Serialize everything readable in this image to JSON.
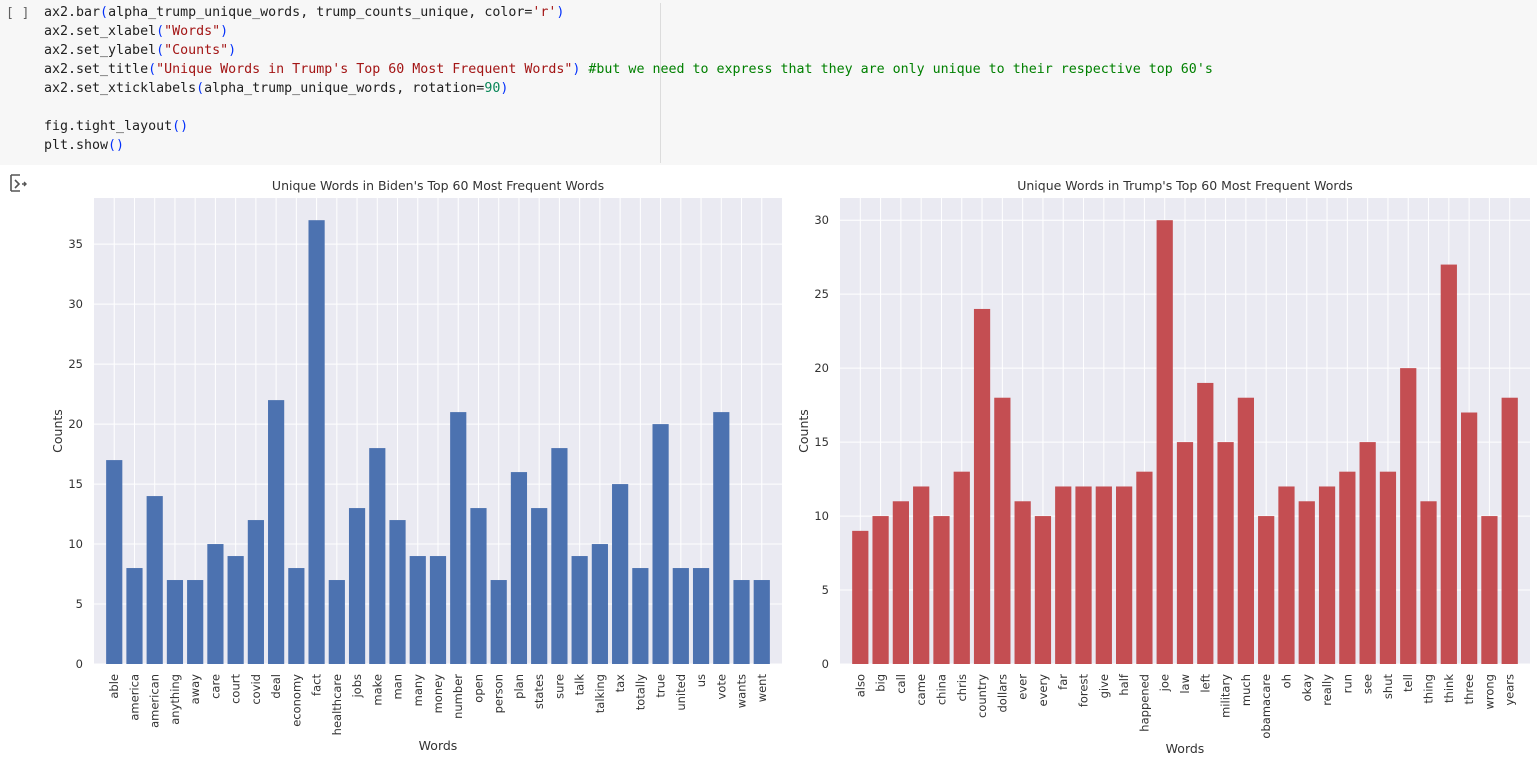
{
  "cell": {
    "run_indicator": "[ ]",
    "code_lines": [
      [
        {
          "t": "ax2.bar"
        },
        {
          "t": "(",
          "k": "par"
        },
        {
          "t": "alpha_trump_unique_words, trump_counts_unique, color="
        },
        {
          "t": "'r'",
          "k": "str"
        },
        {
          "t": ")",
          "k": "par"
        }
      ],
      [
        {
          "t": "ax2.set_xlabel"
        },
        {
          "t": "(",
          "k": "par"
        },
        {
          "t": "\"Words\"",
          "k": "str"
        },
        {
          "t": ")",
          "k": "par"
        }
      ],
      [
        {
          "t": "ax2.set_ylabel"
        },
        {
          "t": "(",
          "k": "par"
        },
        {
          "t": "\"Counts\"",
          "k": "str"
        },
        {
          "t": ")",
          "k": "par"
        }
      ],
      [
        {
          "t": "ax2.set_title"
        },
        {
          "t": "(",
          "k": "par"
        },
        {
          "t": "\"Unique Words in Trump's Top 60 Most Frequent Words\"",
          "k": "str"
        },
        {
          "t": ")",
          "k": "par"
        },
        {
          "t": " "
        },
        {
          "t": "#but we need to express that they are only unique to their respective top 60's",
          "k": "cmt"
        }
      ],
      [
        {
          "t": "ax2.set_xticklabels"
        },
        {
          "t": "(",
          "k": "par"
        },
        {
          "t": "alpha_trump_unique_words, rotation="
        },
        {
          "t": "90",
          "k": "num"
        },
        {
          "t": ")",
          "k": "par"
        }
      ],
      [],
      [
        {
          "t": "fig.tight_layout"
        },
        {
          "t": "()",
          "k": "par"
        }
      ],
      [
        {
          "t": "plt.show"
        },
        {
          "t": "()",
          "k": "par"
        }
      ]
    ]
  },
  "output": {
    "icon": "output-toggle-icon"
  },
  "chart_data": [
    {
      "type": "bar",
      "title": "Unique Words in Biden's Top 60 Most Frequent Words",
      "xlabel": "Words",
      "ylabel": "Counts",
      "color": "#4c72b0",
      "ylim": [
        0,
        38.85
      ],
      "yticks": [
        0,
        5,
        10,
        15,
        20,
        25,
        30,
        35
      ],
      "grid": true,
      "categories": [
        "able",
        "america",
        "american",
        "anything",
        "away",
        "care",
        "court",
        "covid",
        "deal",
        "economy",
        "fact",
        "healthcare",
        "jobs",
        "make",
        "man",
        "many",
        "money",
        "number",
        "open",
        "person",
        "plan",
        "states",
        "sure",
        "talk",
        "talking",
        "tax",
        "totally",
        "true",
        "united",
        "us",
        "vote",
        "wants",
        "went"
      ],
      "values": [
        17,
        8,
        14,
        7,
        7,
        10,
        9,
        12,
        22,
        8,
        37,
        7,
        13,
        18,
        12,
        9,
        9,
        21,
        13,
        7,
        16,
        13,
        18,
        9,
        10,
        15,
        8,
        20,
        8,
        8,
        21,
        7,
        7
      ]
    },
    {
      "type": "bar",
      "title": "Unique Words in Trump's Top 60 Most Frequent Words",
      "xlabel": "Words",
      "ylabel": "Counts",
      "color": "#c44e52",
      "ylim": [
        0,
        31.5
      ],
      "yticks": [
        0,
        5,
        10,
        15,
        20,
        25,
        30
      ],
      "grid": true,
      "categories": [
        "also",
        "big",
        "call",
        "came",
        "china",
        "chris",
        "country",
        "dollars",
        "ever",
        "every",
        "far",
        "forest",
        "give",
        "half",
        "happened",
        "joe",
        "law",
        "left",
        "military",
        "much",
        "obamacare",
        "oh",
        "okay",
        "really",
        "run",
        "see",
        "shut",
        "tell",
        "thing",
        "think",
        "three",
        "wrong",
        "years"
      ],
      "values": [
        9,
        10,
        11,
        12,
        10,
        13,
        24,
        18,
        11,
        10,
        12,
        12,
        12,
        12,
        13,
        30,
        15,
        19,
        15,
        18,
        10,
        12,
        11,
        12,
        13,
        15,
        13,
        20,
        11,
        27,
        17,
        10,
        18
      ]
    }
  ]
}
